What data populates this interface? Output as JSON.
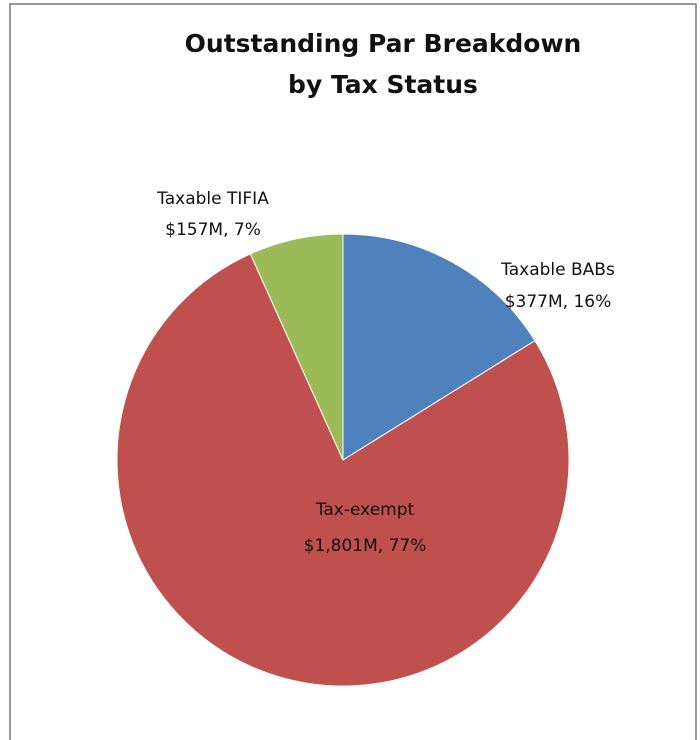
{
  "chart_data": {
    "type": "pie",
    "title": [
      "Outstanding Par Breakdown",
      "by Tax Status"
    ],
    "categories": [
      "Taxable BABs",
      "Tax-exempt",
      "Taxable TIFIA"
    ],
    "values": [
      377,
      1801,
      157
    ],
    "value_labels": [
      "$377M, 16%",
      "$1,801M, 77%",
      "$157M, 7%"
    ],
    "colors": [
      "#4f81bd",
      "#c0504d",
      "#9bbb59"
    ]
  }
}
